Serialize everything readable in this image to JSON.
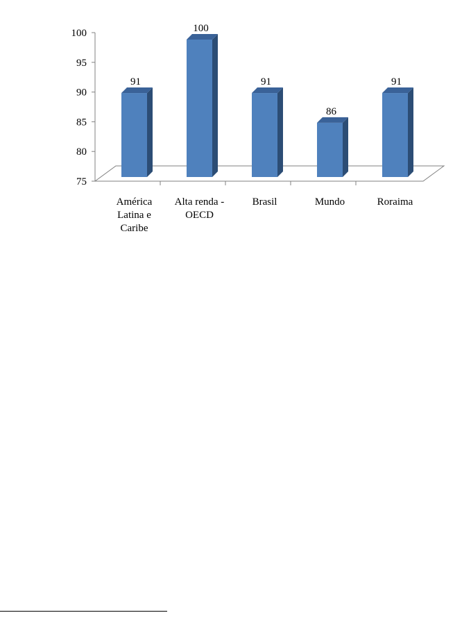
{
  "chart_data": {
    "type": "bar",
    "title": "",
    "xlabel": "",
    "ylabel": "",
    "categories": [
      [
        "América",
        "Latina e",
        "Caribe"
      ],
      [
        "Alta renda -",
        "OECD"
      ],
      [
        "Brasil"
      ],
      [
        "Mundo"
      ],
      [
        "Roraima"
      ]
    ],
    "values": [
      91,
      100,
      91,
      86,
      91
    ],
    "ylim": [
      75,
      100
    ],
    "yticks": [
      75,
      80,
      85,
      90,
      95,
      100
    ],
    "grid": false,
    "legend": "none",
    "style": "3d-column"
  },
  "colors": {
    "bar_front": "#4f81bd",
    "bar_side": "#2c4d75",
    "bar_top": "#3a6298",
    "floor": "#ffffff",
    "axis": "#808080"
  }
}
